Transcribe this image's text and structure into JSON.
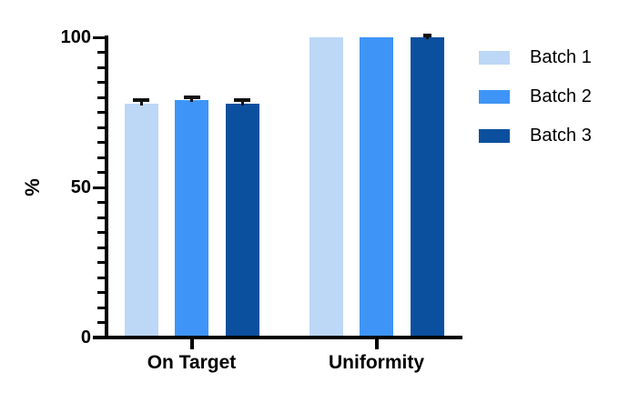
{
  "figure": {
    "background": "#ffffff",
    "axis_color": "#000000",
    "error_bar_color": "#111111"
  },
  "chart_data": {
    "type": "bar",
    "title": "",
    "xlabel": "",
    "ylabel": "%",
    "categories": [
      "On Target",
      "Uniformity"
    ],
    "series": [
      {
        "name": "Batch 1",
        "color": "#BDD7F7",
        "values": [
          78,
          100
        ],
        "errors": [
          1,
          0
        ]
      },
      {
        "name": "Batch 2",
        "color": "#3E95F7",
        "values": [
          79,
          100
        ],
        "errors": [
          1,
          0
        ]
      },
      {
        "name": "Batch 3",
        "color": "#0B4F9F",
        "values": [
          78,
          100
        ],
        "errors": [
          1,
          0.7
        ]
      }
    ],
    "ylim": [
      0,
      100
    ],
    "yticks_major": [
      0,
      50,
      100
    ],
    "ytick_minor_step": 5,
    "grid": false,
    "legend_position": "right",
    "error_bars": "shown above bar tops with short black caps"
  }
}
